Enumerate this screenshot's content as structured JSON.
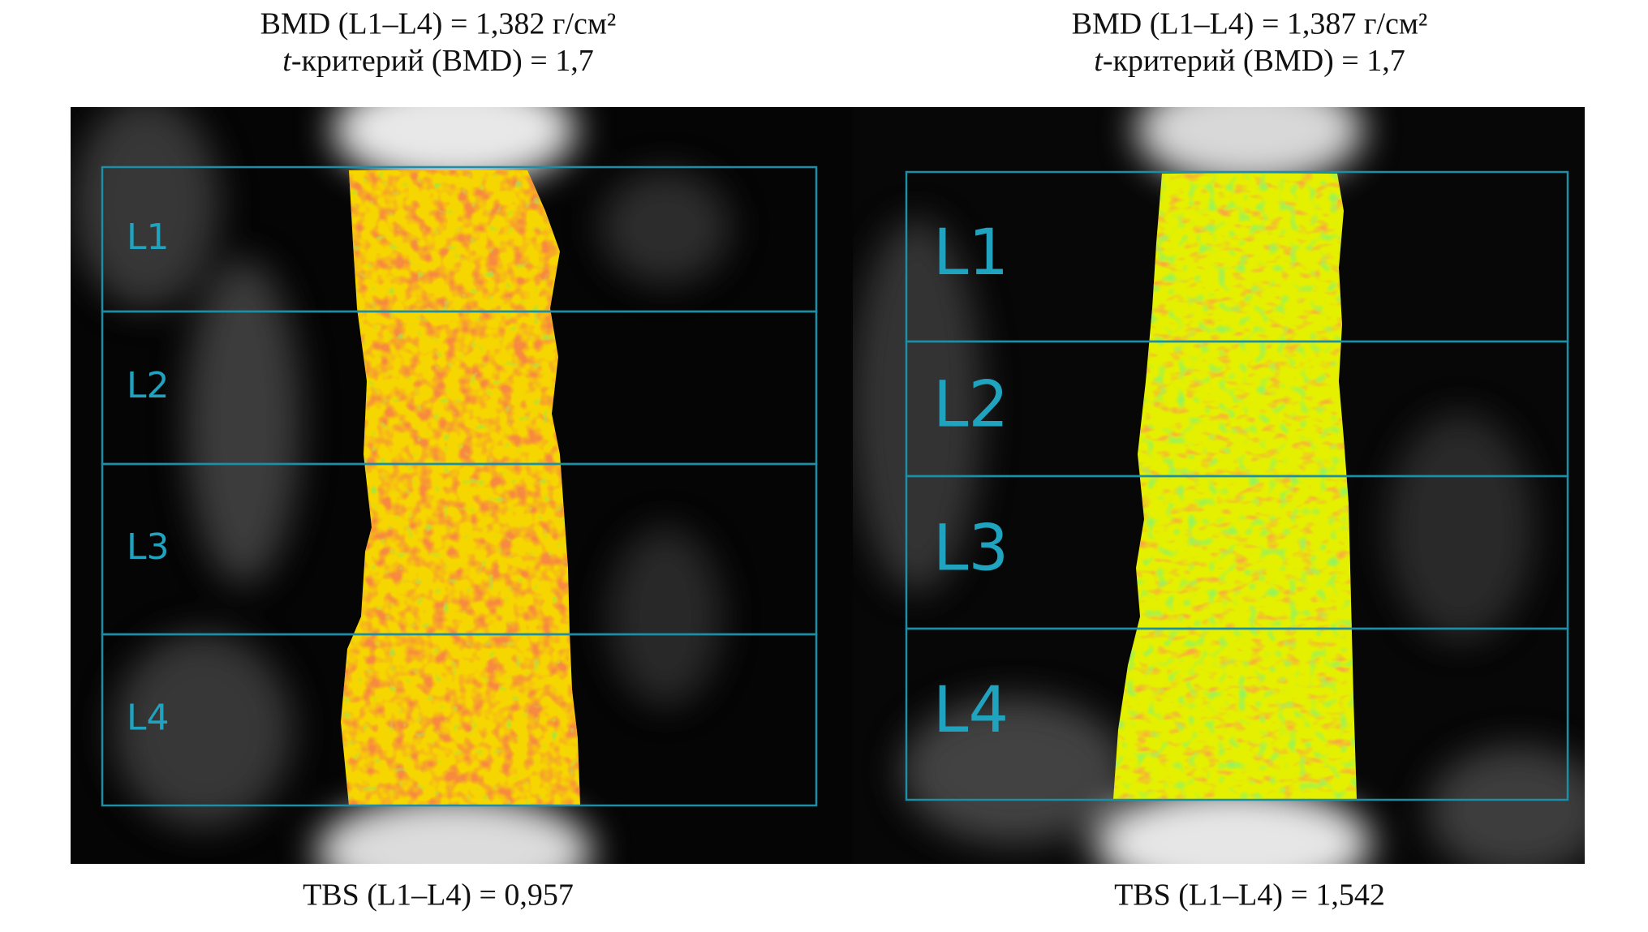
{
  "panels": [
    {
      "header": [
        "BMD (L1–L4) = 1,382 г/см²",
        {
          "var": "t",
          "text": "-критерий (BMD) = 1,7"
        }
      ],
      "regions": [
        "L1",
        "L2",
        "L3",
        "L4"
      ],
      "footer": "TBS (L1–L4) = 0,957"
    },
    {
      "header": [
        "BMD (L1–L4) = 1,387 г/см²",
        {
          "var": "t",
          "text": "-критерий (BMD) = 1,7"
        }
      ],
      "regions": [
        "L1",
        "L2",
        "L3",
        "L4"
      ],
      "footer": "TBS (L1–L4) = 1,542"
    }
  ]
}
